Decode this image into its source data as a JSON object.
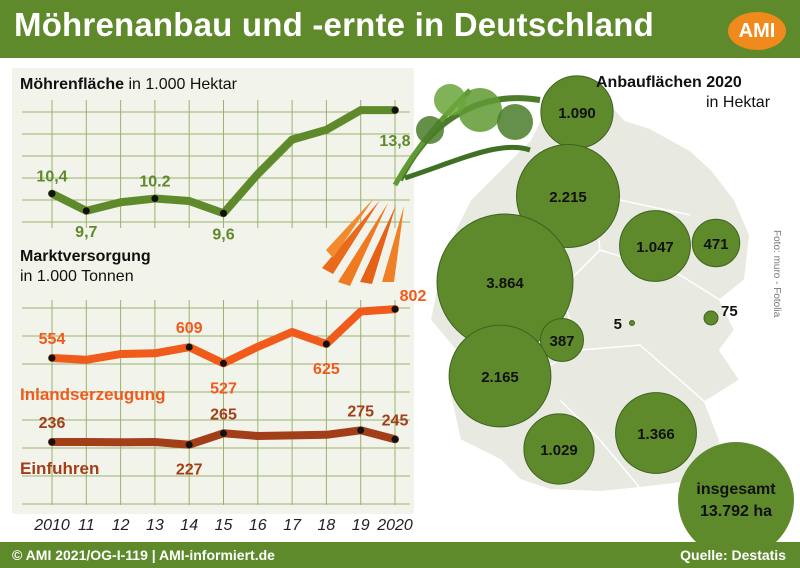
{
  "header": {
    "title": "Möhrenanbau und -ernte in Deutschland",
    "logo": "AMI"
  },
  "footer": {
    "left": "© AMI 2021/OG-I-119 | AMI-informiert.de",
    "right": "Quelle: Destatis"
  },
  "image_credit": "Foto: muro - Fotolia",
  "colors": {
    "green": "#5e8a2b",
    "orange": "#f05a1a",
    "brown": "#a33f18",
    "grid": "#9ab36d",
    "accent": "#f08a1c"
  },
  "decor": [
    "carrot-bunch-image",
    "germany-map"
  ],
  "chart_data": [
    {
      "type": "line",
      "title": "Möhrenfläche",
      "subtitle": "in 1.000 Hektar",
      "x": [
        2010,
        2011,
        2012,
        2013,
        2014,
        2015,
        2016,
        2017,
        2018,
        2019,
        2020
      ],
      "x_tick_labels": [
        "2010",
        "11",
        "12",
        "13",
        "14",
        "15",
        "16",
        "17",
        "18",
        "19",
        "2020"
      ],
      "series": [
        {
          "values": [
            10.4,
            9.7,
            10.05,
            10.2,
            10.1,
            9.6,
            11.2,
            12.6,
            13.0,
            13.8,
            13.8
          ],
          "color": "#5e8a2b",
          "labels": [
            {
              "x": 2010,
              "text": "10,4"
            },
            {
              "x": 2011,
              "text": "9,7"
            },
            {
              "x": 2013,
              "text": "10.2"
            },
            {
              "x": 2015,
              "text": "9,6"
            },
            {
              "x": 2020,
              "text": "13,8"
            }
          ]
        }
      ],
      "ylim": [
        9.0,
        14.5
      ],
      "grid": true
    },
    {
      "type": "line",
      "title": "Marktversorgung",
      "subtitle": "in 1.000 Tonnen",
      "x": [
        2010,
        2011,
        2012,
        2013,
        2014,
        2015,
        2016,
        2017,
        2018,
        2019,
        2020
      ],
      "x_tick_labels": [
        "2010",
        "11",
        "12",
        "13",
        "14",
        "15",
        "16",
        "17",
        "18",
        "19",
        "2020"
      ],
      "series": [
        {
          "name": "Inlandserzeugung",
          "color": "#f05a1a",
          "values": [
            554,
            545,
            574,
            578,
            609,
            527,
            611,
            686,
            625,
            790,
            802
          ],
          "labels": [
            {
              "x": 2010,
              "text": "554"
            },
            {
              "x": 2014,
              "text": "609"
            },
            {
              "x": 2015,
              "text": "527"
            },
            {
              "x": 2018,
              "text": "625"
            },
            {
              "x": 2020,
              "text": "802"
            }
          ]
        },
        {
          "name": "Einfuhren",
          "color": "#a33f18",
          "values": [
            236,
            236,
            235,
            236,
            227,
            265,
            256,
            258,
            260,
            275,
            245
          ],
          "labels": [
            {
              "x": 2010,
              "text": "236"
            },
            {
              "x": 2014,
              "text": "227"
            },
            {
              "x": 2015,
              "text": "265"
            },
            {
              "x": 2019,
              "text": "275"
            },
            {
              "x": 2020,
              "text": "245"
            }
          ]
        }
      ],
      "grid": true
    },
    {
      "type": "bubble-map",
      "title": "Anbauflächen 2020",
      "subtitle": "in Hektar",
      "regions": [
        {
          "label": "1.090",
          "value": 1090
        },
        {
          "label": "2.215",
          "value": 2215
        },
        {
          "label": "1.047",
          "value": 1047
        },
        {
          "label": "471",
          "value": 471
        },
        {
          "label": "3.864",
          "value": 3864
        },
        {
          "label": "387",
          "value": 387
        },
        {
          "label": "5",
          "value": 5
        },
        {
          "label": "75",
          "value": 75
        },
        {
          "label": "2.165",
          "value": 2165
        },
        {
          "label": "1.366",
          "value": 1366
        },
        {
          "label": "1.029",
          "value": 1029
        }
      ],
      "total": {
        "label": "insgesamt",
        "value": "13.792 ha"
      }
    }
  ]
}
